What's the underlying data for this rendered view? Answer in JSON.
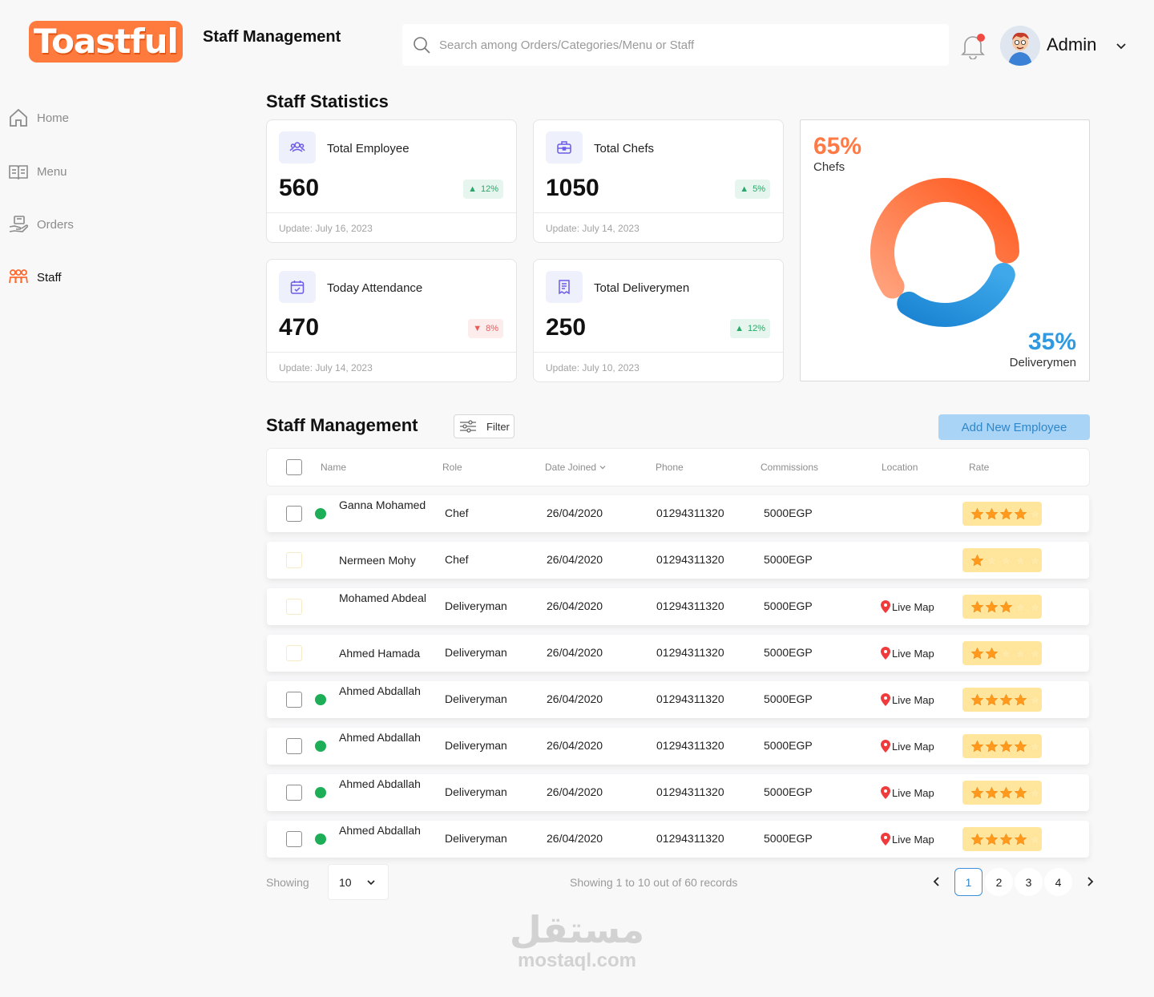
{
  "brand": {
    "logo_text": "Toastful",
    "accent": "#ff7a3d"
  },
  "header": {
    "title": "Staff Management",
    "search_placeholder": "Search among Orders/Categories/Menu or Staff",
    "user_name": "Admin"
  },
  "sidebar": {
    "items": [
      {
        "label": "Home",
        "icon": "home-icon",
        "active": false
      },
      {
        "label": "Menu",
        "icon": "menu-book-icon",
        "active": false
      },
      {
        "label": "Orders",
        "icon": "orders-icon",
        "active": false
      },
      {
        "label": "Staff",
        "icon": "staff-icon",
        "active": true
      }
    ]
  },
  "stats": {
    "title": "Staff Statistics",
    "cards": [
      {
        "label": "Total Employee",
        "value": "560",
        "change": "12%",
        "trend": "up",
        "updated": "Update: July 16, 2023",
        "icon": "users-icon"
      },
      {
        "label": "Total Chefs",
        "value": "1050",
        "change": "5%",
        "trend": "up",
        "updated": "Update: July 14, 2023",
        "icon": "briefcase-icon"
      },
      {
        "label": "Today Attendance",
        "value": "470",
        "change": "8%",
        "trend": "down",
        "updated": "Update: July 14, 2023",
        "icon": "calendar-icon"
      },
      {
        "label": "Total Deliverymen",
        "value": "250",
        "change": "12%",
        "trend": "up",
        "updated": "Update: July 10, 2023",
        "icon": "receipt-icon"
      }
    ],
    "donut": {
      "a_pct": "65%",
      "a_label": "Chefs",
      "a_value": 65,
      "a_color": "#ff6a2e",
      "b_pct": "35%",
      "b_label": "Deliverymen",
      "b_value": 35,
      "b_color": "#2f9ae0"
    }
  },
  "management": {
    "title": "Staff Management",
    "filter_label": "Filter",
    "add_label": "Add New Employee",
    "columns": [
      "Name",
      "Role",
      "Date Joined",
      "Phone",
      "Commissions",
      "Location",
      "Rate"
    ],
    "rows": [
      {
        "name": "Ganna Mohamed",
        "role": "Chef",
        "date": "26/04/2020",
        "phone": "01294311320",
        "commission": "5000EGP",
        "location": "",
        "rating": 4,
        "online": true,
        "checkbox_faint": false
      },
      {
        "name": "Nermeen Mohy",
        "role": "Chef",
        "date": "26/04/2020",
        "phone": "01294311320",
        "commission": "5000EGP",
        "location": "",
        "rating": 1,
        "online": false,
        "checkbox_faint": true
      },
      {
        "name": "Mohamed Abdeal",
        "role": "Deliveryman",
        "date": "26/04/2020",
        "phone": "01294311320",
        "commission": "5000EGP",
        "location": "Live Map",
        "rating": 3,
        "online": false,
        "checkbox_faint": true
      },
      {
        "name": "Ahmed Hamada",
        "role": "Deliveryman",
        "date": "26/04/2020",
        "phone": "01294311320",
        "commission": "5000EGP",
        "location": "Live Map",
        "rating": 2,
        "online": false,
        "checkbox_faint": true
      },
      {
        "name": "Ahmed Abdallah",
        "role": "Deliveryman",
        "date": "26/04/2020",
        "phone": "01294311320",
        "commission": "5000EGP",
        "location": "Live Map",
        "rating": 4,
        "online": true,
        "checkbox_faint": false
      },
      {
        "name": "Ahmed Abdallah",
        "role": "Deliveryman",
        "date": "26/04/2020",
        "phone": "01294311320",
        "commission": "5000EGP",
        "location": "Live Map",
        "rating": 4,
        "online": true,
        "checkbox_faint": false
      },
      {
        "name": "Ahmed Abdallah",
        "role": "Deliveryman",
        "date": "26/04/2020",
        "phone": "01294311320",
        "commission": "5000EGP",
        "location": "Live Map",
        "rating": 4,
        "online": true,
        "checkbox_faint": false
      },
      {
        "name": "Ahmed Abdallah",
        "role": "Deliveryman",
        "date": "26/04/2020",
        "phone": "01294311320",
        "commission": "5000EGP",
        "location": "Live Map",
        "rating": 4,
        "online": true,
        "checkbox_faint": false
      }
    ]
  },
  "pagination": {
    "showing_label": "Showing",
    "page_size": "10",
    "records_text": "Showing 1 to 10 out of 60 records",
    "pages": [
      "1",
      "2",
      "3",
      "4"
    ],
    "current": "1"
  },
  "watermark": {
    "arabic": "مستقل",
    "text": "mostaql.com"
  }
}
